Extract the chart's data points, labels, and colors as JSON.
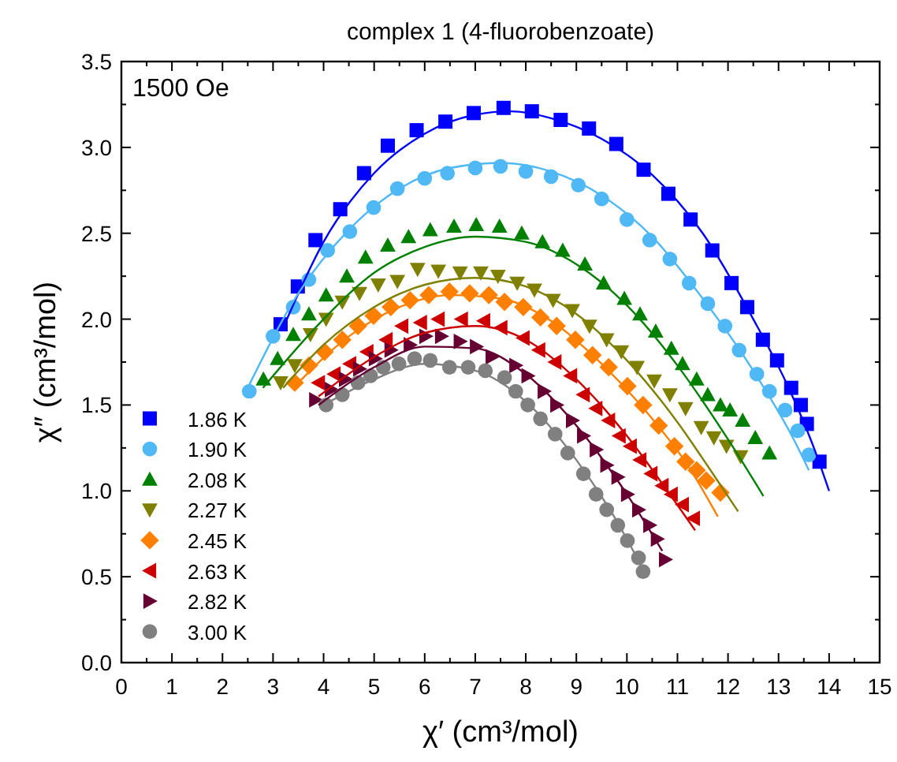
{
  "chart_data": {
    "type": "scatter",
    "title": "complex 1 (4-fluorobenzoate)",
    "xlabel": "χ′ (cm³/mol)",
    "ylabel": "χ″ (cm³/mol)",
    "annotations": [
      "1500 Oe"
    ],
    "xlim": [
      0,
      15
    ],
    "xticks": [
      0,
      1,
      2,
      3,
      4,
      5,
      6,
      7,
      8,
      9,
      10,
      11,
      12,
      13,
      14,
      15
    ],
    "ylim": [
      0,
      3.5
    ],
    "yticks": [
      {
        "value": 0,
        "label": "0.0"
      },
      {
        "value": 0.5,
        "label": "0.5"
      },
      {
        "value": 1,
        "label": "1.0"
      },
      {
        "value": 1.5,
        "label": "1.5"
      },
      {
        "value": 2,
        "label": "2.0"
      },
      {
        "value": 2.5,
        "label": "2.5"
      },
      {
        "value": 3,
        "label": "3.0"
      },
      {
        "value": 3.5,
        "label": "3.5"
      }
    ],
    "grid": false,
    "legend": "bottom left",
    "series": [
      {
        "name": "1.86 K",
        "color": "#0000ff",
        "marker": "square",
        "x": [
          3.15,
          3.49,
          3.84,
          4.33,
          4.8,
          5.27,
          5.84,
          6.41,
          6.97,
          7.56,
          8.12,
          8.69,
          9.25,
          9.79,
          10.33,
          10.82,
          11.26,
          11.69,
          12.07,
          12.38,
          12.69,
          12.97,
          13.25,
          13.44,
          13.56,
          13.81
        ],
        "values": [
          1.97,
          2.19,
          2.46,
          2.64,
          2.85,
          3.01,
          3.1,
          3.15,
          3.2,
          3.23,
          3.21,
          3.16,
          3.11,
          3.02,
          2.87,
          2.73,
          2.58,
          2.4,
          2.21,
          2.07,
          1.88,
          1.76,
          1.6,
          1.5,
          1.39,
          1.17
        ]
      },
      {
        "name": "1.90 K",
        "color": "#4fb8f5",
        "marker": "circle",
        "x": [
          2.53,
          3.0,
          3.4,
          3.71,
          4.08,
          4.52,
          4.99,
          5.46,
          6.0,
          6.45,
          7.0,
          7.5,
          8.0,
          8.5,
          9.04,
          9.5,
          10.0,
          10.45,
          10.85,
          11.23,
          11.6,
          11.94,
          12.22,
          12.57,
          12.82,
          13.13,
          13.38,
          13.6
        ],
        "values": [
          1.58,
          1.9,
          2.07,
          2.23,
          2.4,
          2.51,
          2.65,
          2.76,
          2.82,
          2.85,
          2.88,
          2.89,
          2.86,
          2.83,
          2.78,
          2.7,
          2.58,
          2.46,
          2.35,
          2.21,
          2.09,
          1.96,
          1.82,
          1.68,
          1.58,
          1.47,
          1.35,
          1.21
        ]
      },
      {
        "name": "2.08 K",
        "color": "#008000",
        "marker": "triangle",
        "x": [
          2.81,
          3.09,
          3.4,
          3.71,
          4.05,
          4.46,
          4.83,
          5.27,
          5.68,
          6.11,
          6.58,
          7.02,
          7.48,
          7.92,
          8.33,
          8.73,
          9.17,
          9.54,
          9.95,
          10.26,
          10.57,
          10.88,
          11.1,
          11.38,
          11.6,
          11.85,
          12.04,
          12.29,
          12.54,
          12.82
        ],
        "values": [
          1.65,
          1.77,
          1.91,
          2.03,
          2.14,
          2.25,
          2.36,
          2.43,
          2.48,
          2.52,
          2.54,
          2.55,
          2.54,
          2.5,
          2.45,
          2.4,
          2.32,
          2.21,
          2.12,
          2.03,
          1.93,
          1.83,
          1.74,
          1.65,
          1.56,
          1.5,
          1.47,
          1.41,
          1.31,
          1.22
        ]
      },
      {
        "name": "2.27 K",
        "color": "#808000",
        "marker": "triangle-down",
        "x": [
          3.15,
          3.43,
          3.74,
          4.05,
          4.37,
          4.71,
          5.08,
          5.46,
          5.86,
          6.27,
          6.7,
          7.11,
          7.45,
          7.83,
          8.17,
          8.54,
          8.92,
          9.26,
          9.6,
          9.89,
          10.2,
          10.54,
          10.85,
          11.16,
          11.47,
          11.72,
          11.97,
          12.25
        ],
        "values": [
          1.63,
          1.73,
          1.91,
          2.0,
          2.1,
          2.15,
          2.2,
          2.22,
          2.29,
          2.28,
          2.27,
          2.27,
          2.25,
          2.21,
          2.17,
          2.11,
          2.05,
          1.96,
          1.88,
          1.81,
          1.72,
          1.64,
          1.56,
          1.48,
          1.37,
          1.31,
          1.26,
          1.2
        ]
      },
      {
        "name": "2.45 K",
        "color": "#ff8000",
        "marker": "diamond",
        "x": [
          3.43,
          3.71,
          4.02,
          4.37,
          4.68,
          4.99,
          5.33,
          5.71,
          6.08,
          6.49,
          6.89,
          7.27,
          7.58,
          7.95,
          8.29,
          8.61,
          8.98,
          9.32,
          9.64,
          10.01,
          10.32,
          10.63,
          10.94,
          11.16,
          11.38,
          11.57,
          11.85
        ],
        "values": [
          1.63,
          1.73,
          1.81,
          1.88,
          1.96,
          2.02,
          2.07,
          2.11,
          2.14,
          2.16,
          2.15,
          2.14,
          2.1,
          2.07,
          2.01,
          1.96,
          1.88,
          1.79,
          1.72,
          1.61,
          1.5,
          1.38,
          1.26,
          1.17,
          1.12,
          1.06,
          0.99
        ]
      },
      {
        "name": "2.63 K",
        "color": "#cc0000",
        "marker": "triangle-left",
        "x": [
          3.9,
          4.21,
          4.52,
          4.86,
          5.24,
          5.55,
          5.92,
          6.27,
          6.73,
          7.17,
          7.51,
          7.95,
          8.26,
          8.58,
          8.89,
          9.14,
          9.39,
          9.64,
          9.85,
          10.07,
          10.26,
          10.48,
          10.7,
          10.88,
          11.1,
          11.32
        ],
        "values": [
          1.63,
          1.68,
          1.74,
          1.81,
          1.88,
          1.96,
          1.98,
          2.0,
          2.0,
          1.99,
          1.95,
          1.89,
          1.82,
          1.75,
          1.67,
          1.56,
          1.48,
          1.41,
          1.32,
          1.26,
          1.18,
          1.1,
          1.03,
          0.98,
          0.92,
          0.84
        ]
      },
      {
        "name": "2.82 K",
        "color": "#660033",
        "marker": "triangle-right",
        "x": [
          3.84,
          4.15,
          4.43,
          4.71,
          5.02,
          5.33,
          5.71,
          6.02,
          6.33,
          6.7,
          7.02,
          7.33,
          7.8,
          8.04,
          8.36,
          8.61,
          8.92,
          9.14,
          9.39,
          9.6,
          9.82,
          10.01,
          10.23,
          10.45,
          10.6,
          10.76
        ],
        "values": [
          1.53,
          1.59,
          1.65,
          1.71,
          1.77,
          1.82,
          1.85,
          1.9,
          1.9,
          1.87,
          1.84,
          1.78,
          1.73,
          1.67,
          1.58,
          1.5,
          1.41,
          1.32,
          1.24,
          1.15,
          1.08,
          0.98,
          0.89,
          0.8,
          0.72,
          0.6
        ]
      },
      {
        "name": "3.00 K",
        "color": "#808080",
        "marker": "circle",
        "x": [
          4.05,
          4.37,
          4.68,
          4.93,
          5.18,
          5.49,
          5.8,
          6.11,
          6.49,
          6.86,
          7.2,
          7.58,
          7.8,
          8.04,
          8.29,
          8.58,
          8.83,
          9.14,
          9.39,
          9.6,
          9.82,
          10.01,
          10.23,
          10.32
        ],
        "values": [
          1.5,
          1.56,
          1.63,
          1.67,
          1.72,
          1.74,
          1.77,
          1.76,
          1.72,
          1.72,
          1.7,
          1.66,
          1.58,
          1.5,
          1.42,
          1.33,
          1.22,
          1.1,
          0.98,
          0.89,
          0.8,
          0.71,
          0.61,
          0.53
        ]
      },
      {
        "type": "line",
        "color": "#0000ff",
        "x": [
          3.2,
          4,
          5,
          6,
          7,
          7.7,
          8.5,
          9.5,
          10.5,
          11.5,
          12.5,
          13.2,
          13.7,
          14.0
        ],
        "values": [
          1.95,
          2.45,
          2.85,
          3.08,
          3.19,
          3.21,
          3.17,
          3.05,
          2.84,
          2.5,
          2.0,
          1.6,
          1.25,
          1.0
        ]
      },
      {
        "type": "line",
        "color": "#4fb8f5",
        "x": [
          2.5,
          3.5,
          4.5,
          5.5,
          6.5,
          7.5,
          8.5,
          9.5,
          10.5,
          11.5,
          12.5,
          13.3,
          13.6
        ],
        "values": [
          1.6,
          2.15,
          2.52,
          2.76,
          2.88,
          2.91,
          2.86,
          2.72,
          2.48,
          2.12,
          1.7,
          1.3,
          1.12
        ]
      },
      {
        "type": "line",
        "color": "#008000",
        "x": [
          2.8,
          4,
          5,
          6,
          7,
          8,
          9,
          10,
          11,
          12,
          12.7
        ],
        "values": [
          1.6,
          2.0,
          2.27,
          2.42,
          2.48,
          2.45,
          2.32,
          2.08,
          1.73,
          1.3,
          0.97
        ]
      },
      {
        "type": "line",
        "color": "#808000",
        "x": [
          3.2,
          4,
          5,
          6,
          7,
          8,
          9,
          10,
          11,
          11.7,
          12.2
        ],
        "values": [
          1.6,
          1.85,
          2.07,
          2.2,
          2.24,
          2.19,
          2.03,
          1.76,
          1.4,
          1.1,
          0.88
        ]
      },
      {
        "type": "line",
        "color": "#ff8000",
        "x": [
          3.4,
          4.5,
          5.5,
          6.5,
          7.5,
          8.5,
          9.5,
          10.5,
          11.2,
          11.8
        ],
        "values": [
          1.6,
          1.9,
          2.07,
          2.14,
          2.12,
          1.99,
          1.74,
          1.42,
          1.15,
          0.85
        ]
      },
      {
        "type": "line",
        "color": "#cc0000",
        "x": [
          3.9,
          5,
          6,
          7,
          8,
          9,
          10,
          10.8,
          11.35
        ],
        "values": [
          1.55,
          1.78,
          1.92,
          1.96,
          1.88,
          1.65,
          1.32,
          1.0,
          0.77
        ]
      },
      {
        "type": "line",
        "color": "#660033",
        "x": [
          3.9,
          5,
          6,
          7,
          8,
          9,
          10,
          10.7
        ],
        "values": [
          1.5,
          1.72,
          1.84,
          1.83,
          1.68,
          1.38,
          0.98,
          0.65
        ]
      },
      {
        "type": "line",
        "color": "#808080",
        "x": [
          4,
          5,
          6,
          7,
          8,
          9,
          10,
          10.3
        ],
        "values": [
          1.5,
          1.65,
          1.74,
          1.7,
          1.52,
          1.18,
          0.72,
          0.55
        ]
      }
    ]
  }
}
